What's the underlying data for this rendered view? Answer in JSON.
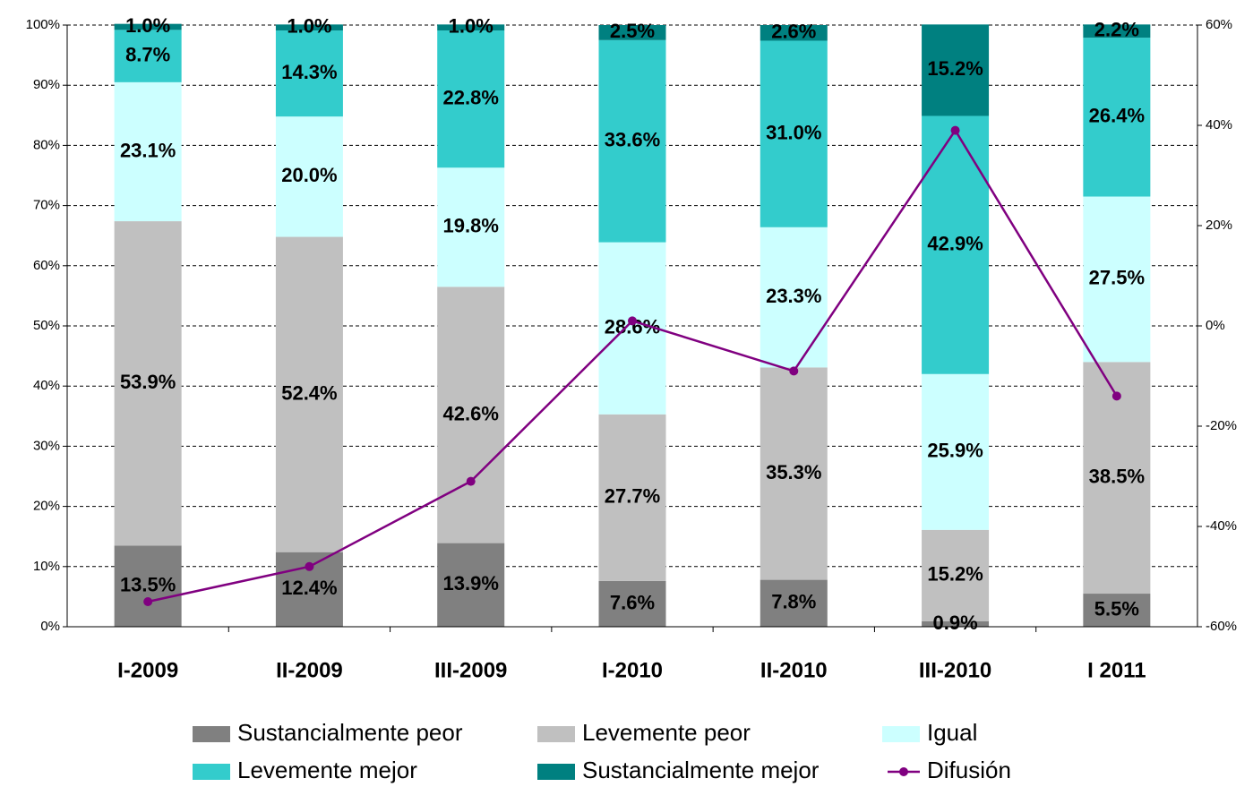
{
  "chart_data": {
    "type": "bar",
    "stacked": true,
    "categories": [
      "I-2009",
      "II-2009",
      "III-2009",
      "I-2010",
      "II-2010",
      "III-2010",
      "I 2011"
    ],
    "series": [
      {
        "name": "Sustancialmente peor",
        "color": "#808080",
        "values": [
          13.5,
          12.4,
          13.9,
          7.6,
          7.8,
          0.9,
          5.5
        ],
        "value_labels": [
          "13.5%",
          "12.4%",
          "13.9%",
          "7.6%",
          "7.8%",
          "0.9%",
          "5.5%"
        ]
      },
      {
        "name": "Levemente peor",
        "color": "#c0c0c0",
        "values": [
          53.9,
          52.4,
          42.6,
          27.7,
          35.3,
          15.2,
          38.5
        ],
        "value_labels": [
          "53.9%",
          "52.4%",
          "42.6%",
          "27.7%",
          "35.3%",
          "15.2%",
          "38.5%"
        ]
      },
      {
        "name": "Igual",
        "color": "#ccffff",
        "values": [
          23.1,
          20,
          19.8,
          28.6,
          23.3,
          25.9,
          27.5
        ],
        "value_labels": [
          "23.1%",
          "20.0%",
          "19.8%",
          "28.6%",
          "23.3%",
          "25.9%",
          "27.5%"
        ]
      },
      {
        "name": "Levemente mejor",
        "color": "#33cccc",
        "values": [
          8.7,
          14.3,
          22.8,
          33.6,
          31,
          42.9,
          26.4
        ],
        "value_labels": [
          "8.7%",
          "14.3%",
          "22.8%",
          "33.6%",
          "31.0%",
          "42.9%",
          "26.4%"
        ]
      },
      {
        "name": "Sustancialmente mejor",
        "color": "#008080",
        "values": [
          1,
          1,
          1,
          2.5,
          2.6,
          15.2,
          2.2
        ],
        "value_labels": [
          "1.0%",
          "1.0%",
          "1.0%",
          "2.5%",
          "2.6%",
          "15.2%",
          "2.2%"
        ]
      },
      {
        "name": "Difusión",
        "color": "#800080",
        "type": "line",
        "axis": "y2",
        "values": [
          -55,
          -48,
          -31,
          1,
          -9,
          39,
          -14
        ]
      }
    ],
    "ylim": [
      0,
      100
    ],
    "yticks": [
      {
        "value": 0,
        "label": "0%"
      },
      {
        "value": 10,
        "label": "10%"
      },
      {
        "value": 20,
        "label": "20%"
      },
      {
        "value": 30,
        "label": "30%"
      },
      {
        "value": 40,
        "label": "40%"
      },
      {
        "value": 50,
        "label": "50%"
      },
      {
        "value": 60,
        "label": "60%"
      },
      {
        "value": 70,
        "label": "70%"
      },
      {
        "value": 80,
        "label": "80%"
      },
      {
        "value": 90,
        "label": "90%"
      },
      {
        "value": 100,
        "label": "100%"
      }
    ],
    "y2lim": [
      -60,
      60
    ],
    "y2ticks": [
      {
        "value": -60,
        "label": "-60%"
      },
      {
        "value": -40,
        "label": "-40%"
      },
      {
        "value": -20,
        "label": "-20%"
      },
      {
        "value": 0,
        "label": "0%"
      },
      {
        "value": 20,
        "label": "20%"
      },
      {
        "value": 40,
        "label": "40%"
      },
      {
        "value": 60,
        "label": "60%"
      }
    ],
    "grid": true,
    "legend": "bottom"
  }
}
